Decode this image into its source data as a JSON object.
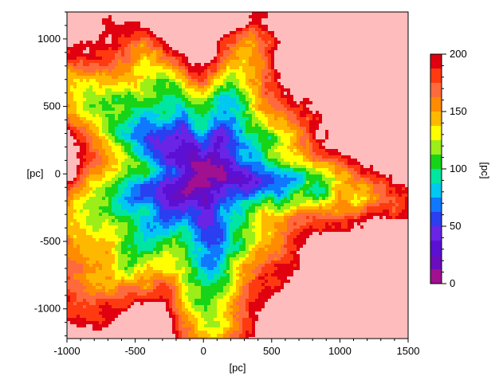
{
  "chart_data": {
    "type": "heatmap",
    "title": "",
    "xlabel": "[pc]",
    "ylabel": "[pc]",
    "xlim": [
      -1000,
      1500
    ],
    "ylim": [
      -1220,
      1200
    ],
    "x_ticks": [
      -1000,
      -500,
      0,
      500,
      1000,
      1500
    ],
    "y_ticks": [
      1000,
      500,
      0,
      -500,
      -1000
    ],
    "x_tick_labels": [
      "-1000",
      "-500",
      "0",
      "500",
      "1000",
      "1500"
    ],
    "y_tick_labels": [
      "1000",
      "500",
      "0",
      "-500",
      "-1000"
    ],
    "colorbar": {
      "label": "[pc]",
      "range": [
        0,
        200
      ],
      "ticks": [
        0,
        50,
        100,
        150,
        200
      ],
      "tick_labels": [
        "0",
        "50",
        "100",
        "150",
        "200"
      ],
      "levels": [
        {
          "from": 0,
          "to": 12.5,
          "color": "#a01090"
        },
        {
          "from": 12.5,
          "to": 25,
          "color": "#6a0dbe"
        },
        {
          "from": 25,
          "to": 37.5,
          "color": "#5b10d4"
        },
        {
          "from": 37.5,
          "to": 50,
          "color": "#6a24e6"
        },
        {
          "from": 50,
          "to": 62.5,
          "color": "#2a3ff0"
        },
        {
          "from": 62.5,
          "to": 75,
          "color": "#0f78ff"
        },
        {
          "from": 75,
          "to": 87.5,
          "color": "#00c8f0"
        },
        {
          "from": 87.5,
          "to": 100,
          "color": "#00e6a0"
        },
        {
          "from": 100,
          "to": 112.5,
          "color": "#18d418"
        },
        {
          "from": 112.5,
          "to": 125,
          "color": "#9cee18"
        },
        {
          "from": 125,
          "to": 137.5,
          "color": "#ffff00"
        },
        {
          "from": 137.5,
          "to": 150,
          "color": "#ffb800"
        },
        {
          "from": 150,
          "to": 162.5,
          "color": "#ff8c00"
        },
        {
          "from": 162.5,
          "to": 175,
          "color": "#ff6a3c"
        },
        {
          "from": 175,
          "to": 187.5,
          "color": "#ff3a10"
        },
        {
          "from": 187.5,
          "to": 200,
          "color": "#e00010"
        }
      ],
      "over_color": "#ffbcbc"
    },
    "field": {
      "center": [
        0,
        0
      ],
      "min_value": 0,
      "max_value": 200,
      "description_levels": "distance-like field increasing outward from center"
    },
    "grid": false,
    "legend": "colorbar-right"
  }
}
